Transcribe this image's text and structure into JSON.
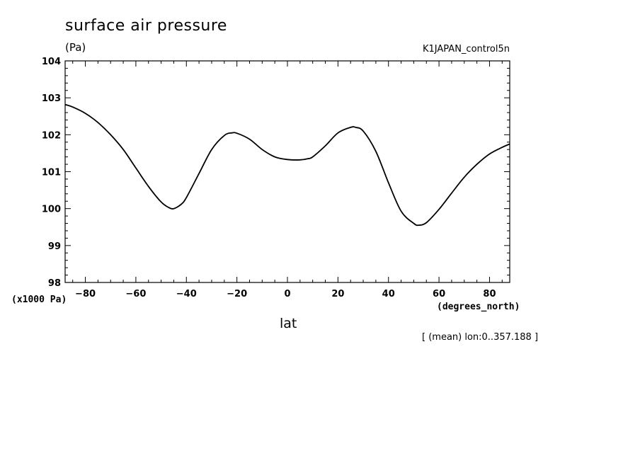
{
  "header": {
    "title": "surface air pressure",
    "units": "(Pa)",
    "run_name": "K1JAPAN_control5n"
  },
  "axes": {
    "y_scale_note": "(x1000 Pa)",
    "x_units": "(degrees_north)",
    "x_label": "lat"
  },
  "footnote": "[ (mean) lon:0..357.188 ]",
  "chart_data": {
    "type": "line",
    "title": "surface air pressure",
    "ylabel": "(Pa)",
    "xlabel": "lat",
    "xlim": [
      -88,
      88
    ],
    "ylim": [
      98,
      104
    ],
    "x_ticks": [
      -80,
      -60,
      -40,
      -20,
      0,
      20,
      40,
      60,
      80
    ],
    "x_tick_labels": [
      "-80",
      "-60",
      "-40",
      "-20",
      "0",
      "20",
      "40",
      "60",
      "80"
    ],
    "y_ticks": [
      98,
      99,
      100,
      101,
      102,
      103,
      104
    ],
    "y_tick_labels": [
      "98",
      "99",
      "100",
      "101",
      "102",
      "103",
      "104"
    ],
    "grid": false,
    "series": [
      {
        "x": [
          -88,
          -85,
          -80,
          -75,
          -70,
          -65,
          -60,
          -55,
          -50,
          -47,
          -45,
          -42,
          -40,
          -35,
          -30,
          -25,
          -22,
          -20,
          -15,
          -10,
          -5,
          0,
          5,
          8,
          10,
          15,
          20,
          25,
          27,
          30,
          35,
          40,
          45,
          50,
          52,
          55,
          60,
          65,
          70,
          75,
          80,
          85,
          88
        ],
        "y": [
          102.82,
          102.75,
          102.58,
          102.33,
          102.0,
          101.6,
          101.1,
          100.6,
          100.18,
          100.03,
          100.0,
          100.12,
          100.3,
          100.95,
          101.6,
          101.98,
          102.05,
          102.04,
          101.88,
          101.6,
          101.4,
          101.33,
          101.32,
          101.35,
          101.4,
          101.7,
          102.05,
          102.2,
          102.2,
          102.1,
          101.55,
          100.7,
          99.93,
          99.6,
          99.55,
          99.62,
          99.98,
          100.42,
          100.85,
          101.2,
          101.48,
          101.66,
          101.75
        ]
      }
    ]
  }
}
